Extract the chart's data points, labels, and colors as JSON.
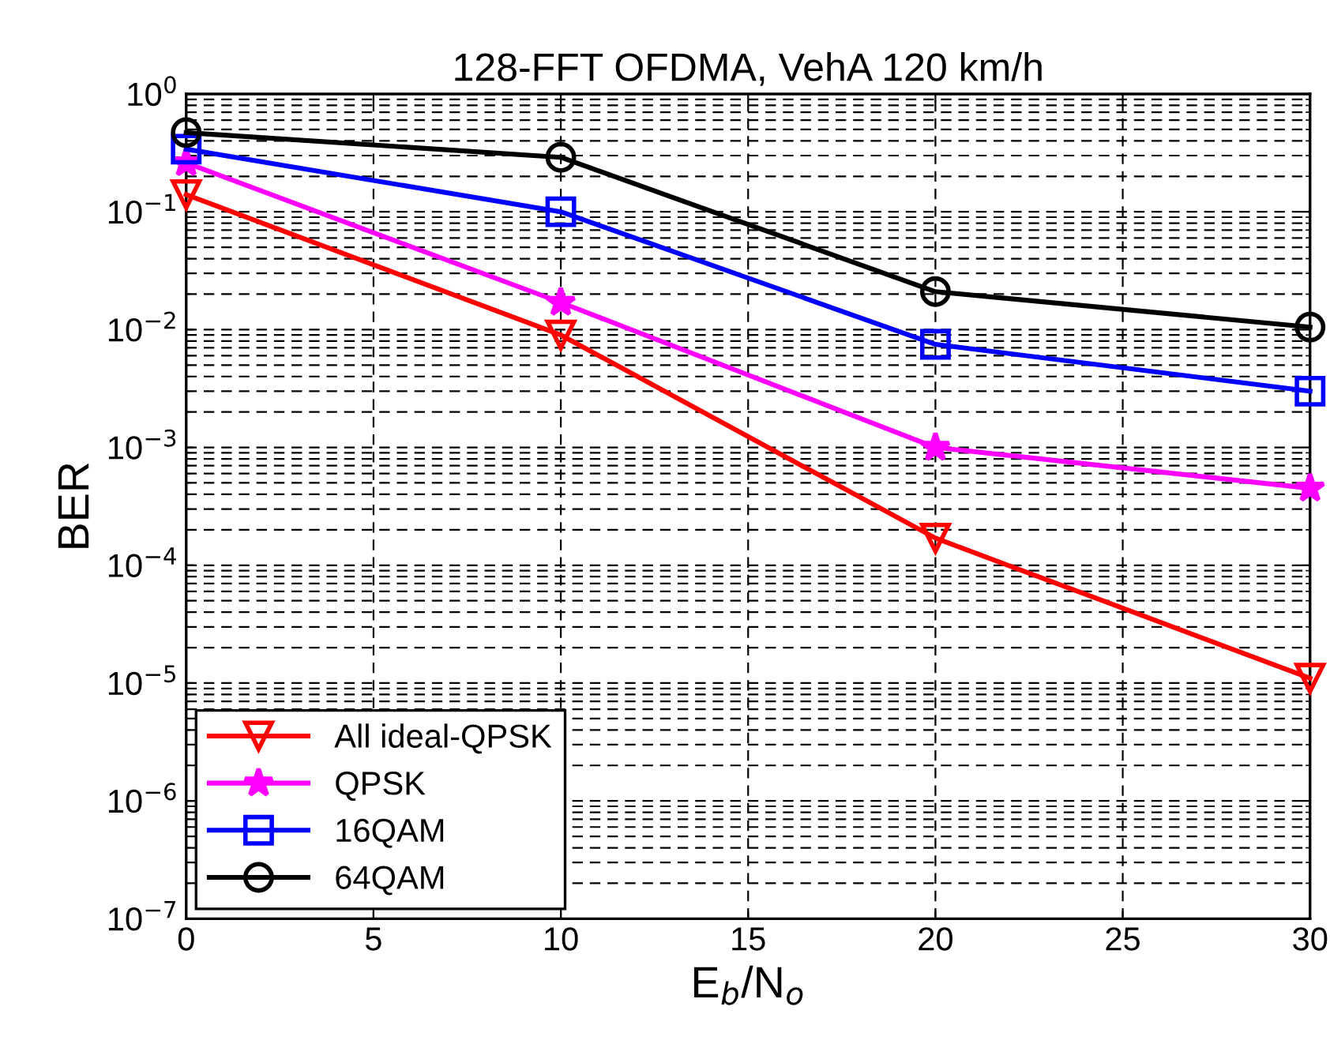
{
  "chart_data": {
    "type": "line",
    "title": "128-FFT OFDMA, VehA 120 km/h",
    "xlabel": "E$_{b}$/N$_{o}$",
    "ylabel": "BER",
    "x": [
      0,
      10,
      20,
      30
    ],
    "series": [
      {
        "name": "All ideal-QPSK",
        "color": "#ff0000",
        "marker": "triangle",
        "values": [
          0.14,
          0.009,
          0.00017,
          1.1e-05
        ]
      },
      {
        "name": "QPSK",
        "color": "#ff00ff",
        "marker": "star",
        "values": [
          0.26,
          0.017,
          0.001,
          0.00045
        ]
      },
      {
        "name": "16QAM",
        "color": "#0000ff",
        "marker": "square",
        "values": [
          0.34,
          0.1,
          0.0075,
          0.003
        ]
      },
      {
        "name": "64QAM",
        "color": "#000000",
        "marker": "circle",
        "values": [
          0.47,
          0.29,
          0.021,
          0.0105
        ]
      }
    ],
    "log": "y",
    "xlim": [
      0,
      30
    ],
    "xticks": [
      0,
      5,
      10,
      15,
      20,
      25,
      30
    ],
    "ylim": [
      1e-07,
      1
    ],
    "yticks": [
      {
        "value": 1e-07,
        "label": "10$^{−7}$"
      },
      {
        "value": 1e-06,
        "label": "10$^{−6}$"
      },
      {
        "value": 1e-05,
        "label": "10$^{−5}$"
      },
      {
        "value": 0.0001,
        "label": "10$^{−4}$"
      },
      {
        "value": 0.001,
        "label": "10$^{−3}$"
      },
      {
        "value": 0.01,
        "label": "10$^{−2}$"
      },
      {
        "value": 0.1,
        "label": "10$^{−1}$"
      },
      {
        "value": 1,
        "label": "10$^{0}$"
      }
    ],
    "grid": true,
    "line_style": "solid",
    "legend": "bottom left"
  }
}
